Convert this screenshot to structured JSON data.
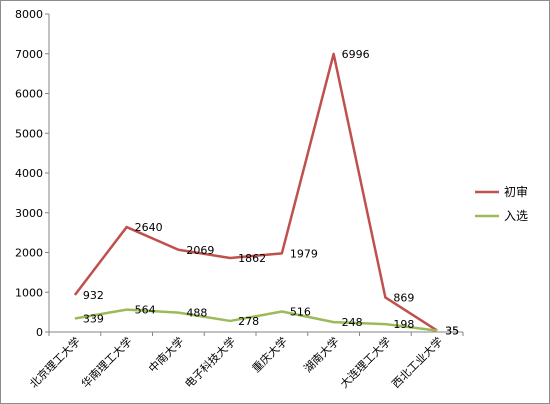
{
  "chart_data": {
    "type": "line",
    "categories": [
      "北京理工大学",
      "华南理工大学",
      "中南大学",
      "电子科技大学",
      "重庆大学",
      "湖南大学",
      "大连理工大学",
      "西北工业大学"
    ],
    "series": [
      {
        "name": "初审",
        "color": "#c0504d",
        "values": [
          932,
          2640,
          2069,
          1862,
          1979,
          6996,
          869,
          35
        ]
      },
      {
        "name": "入选",
        "color": "#9bbb59",
        "values": [
          339,
          564,
          488,
          278,
          516,
          248,
          198,
          35
        ]
      }
    ],
    "ylim": [
      0,
      8000
    ],
    "yticks": [
      0,
      1000,
      2000,
      3000,
      4000,
      5000,
      6000,
      7000,
      8000
    ],
    "grid": false,
    "legend_position": "right",
    "data_labels": true
  }
}
